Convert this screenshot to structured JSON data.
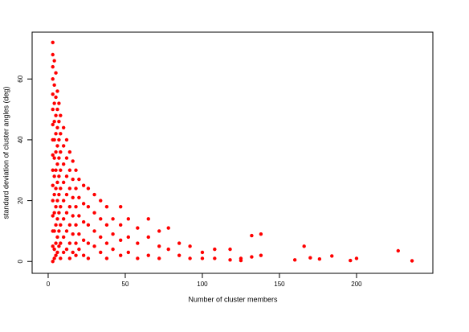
{
  "chart_data": {
    "type": "scatter",
    "x_label": "Number of cluster members",
    "y_label": "standard deviation of cluster angles (deg)",
    "xlim": [
      -10.4,
      249.5
    ],
    "ylim": [
      -3.9,
      75.4
    ],
    "xticks": [
      0,
      50,
      100,
      150,
      200
    ],
    "yticks": [
      0,
      20,
      40,
      60
    ],
    "series": [
      {
        "color": "#ff0000",
        "x": [
          3,
          3,
          3,
          3,
          3,
          3,
          3,
          3,
          3,
          3,
          3,
          3,
          3,
          3,
          3,
          3,
          4,
          4,
          4,
          4,
          4,
          4,
          4,
          4,
          4,
          4,
          4,
          4,
          5,
          5,
          5,
          5,
          5,
          5,
          5,
          5,
          5,
          5,
          5,
          6,
          6,
          6,
          6,
          6,
          6,
          6,
          6,
          6,
          6,
          7,
          7,
          7,
          7,
          7,
          7,
          7,
          7,
          7,
          8,
          8,
          8,
          8,
          8,
          8,
          8,
          8,
          8,
          10,
          10,
          10,
          10,
          10,
          10,
          10,
          10,
          12,
          12,
          12,
          12,
          12,
          12,
          12,
          14,
          14,
          14,
          14,
          14,
          14,
          14,
          16,
          16,
          16,
          16,
          16,
          16,
          18,
          18,
          18,
          18,
          18,
          18,
          20,
          20,
          20,
          20,
          20,
          23,
          23,
          23,
          23,
          23,
          26,
          26,
          26,
          26,
          26,
          30,
          30,
          30,
          30,
          34,
          34,
          34,
          34,
          38,
          38,
          38,
          38,
          42,
          42,
          42,
          47,
          47,
          47,
          47,
          52,
          52,
          52,
          58,
          58,
          58,
          65,
          65,
          65,
          72,
          72,
          72,
          78,
          78,
          85,
          85,
          92,
          92,
          100,
          100,
          108,
          108,
          118,
          118,
          125,
          125,
          132,
          132,
          138,
          138,
          160,
          166,
          170,
          176,
          184,
          196,
          200,
          227,
          236
        ],
        "values": [
          72,
          68,
          64,
          60,
          55,
          50,
          45,
          40,
          35,
          30,
          25,
          20,
          15,
          10,
          5,
          0,
          66,
          58,
          52,
          46,
          40,
          34,
          28,
          22,
          16,
          10,
          4,
          1,
          62,
          54,
          48,
          42,
          36,
          30,
          24,
          18,
          12,
          6,
          2,
          56,
          50,
          44,
          38,
          32,
          26,
          20,
          14,
          8,
          3,
          52,
          46,
          40,
          34,
          28,
          22,
          16,
          10,
          5,
          48,
          42,
          36,
          30,
          24,
          18,
          12,
          6,
          1,
          44,
          38,
          32,
          26,
          20,
          14,
          8,
          3,
          40,
          34,
          28,
          22,
          16,
          10,
          4,
          36,
          30,
          24,
          18,
          12,
          6,
          1,
          33,
          27,
          21,
          15,
          9,
          3,
          30,
          24,
          18,
          12,
          6,
          2,
          27,
          21,
          15,
          9,
          4,
          25,
          19,
          13,
          7,
          2,
          24,
          18,
          12,
          6,
          1,
          22,
          16,
          10,
          5,
          20,
          14,
          8,
          3,
          18,
          12,
          6,
          1,
          14,
          9,
          4,
          18,
          12,
          7,
          2,
          14,
          8,
          3,
          11,
          6,
          1,
          14,
          8,
          2,
          10,
          5,
          1,
          11,
          4,
          6,
          2,
          5,
          1,
          3,
          1,
          4,
          1,
          4,
          0.5,
          1,
          0.3,
          8.5,
          1.5,
          9,
          2,
          0.5,
          5,
          1.2,
          0.8,
          1.8,
          0.3,
          1,
          3.5,
          0.2
        ]
      }
    ]
  }
}
